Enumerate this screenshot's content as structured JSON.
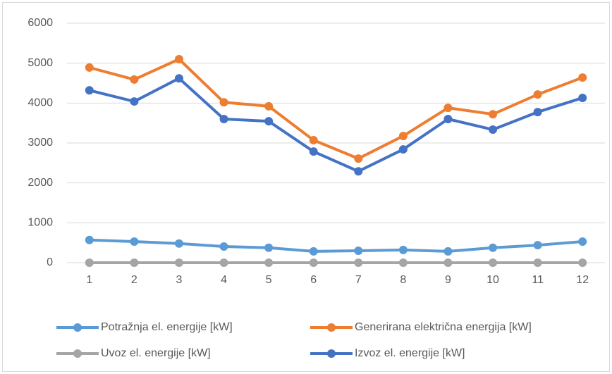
{
  "chart_data": {
    "type": "line",
    "categories": [
      "1",
      "2",
      "3",
      "4",
      "5",
      "6",
      "7",
      "8",
      "9",
      "10",
      "11",
      "12"
    ],
    "series": [
      {
        "name": "Potražnja el. energije [kW]",
        "color": "#5b9bd5",
        "values": [
          570,
          530,
          480,
          405,
          375,
          285,
          300,
          320,
          285,
          375,
          440,
          530
        ]
      },
      {
        "name": "Generirana električna energija [kW]",
        "color": "#ed7d31",
        "values": [
          4890,
          4590,
          5100,
          4020,
          3920,
          3070,
          2610,
          3175,
          3880,
          3720,
          4215,
          4640
        ]
      },
      {
        "name": "Uvoz el. energije [kW]",
        "color": "#a5a5a5",
        "values": [
          0,
          0,
          0,
          0,
          0,
          0,
          0,
          0,
          0,
          0,
          0,
          0
        ]
      },
      {
        "name": "Izvoz el. energije [kW]",
        "color": "#4472c4",
        "values": [
          4320,
          4040,
          4620,
          3600,
          3545,
          2785,
          2290,
          2840,
          3600,
          3335,
          3775,
          4130
        ]
      }
    ],
    "ylim": [
      0,
      6000
    ],
    "yticks": [
      0,
      1000,
      2000,
      3000,
      4000,
      5000,
      6000
    ],
    "grid": true,
    "legend": "bottom"
  }
}
